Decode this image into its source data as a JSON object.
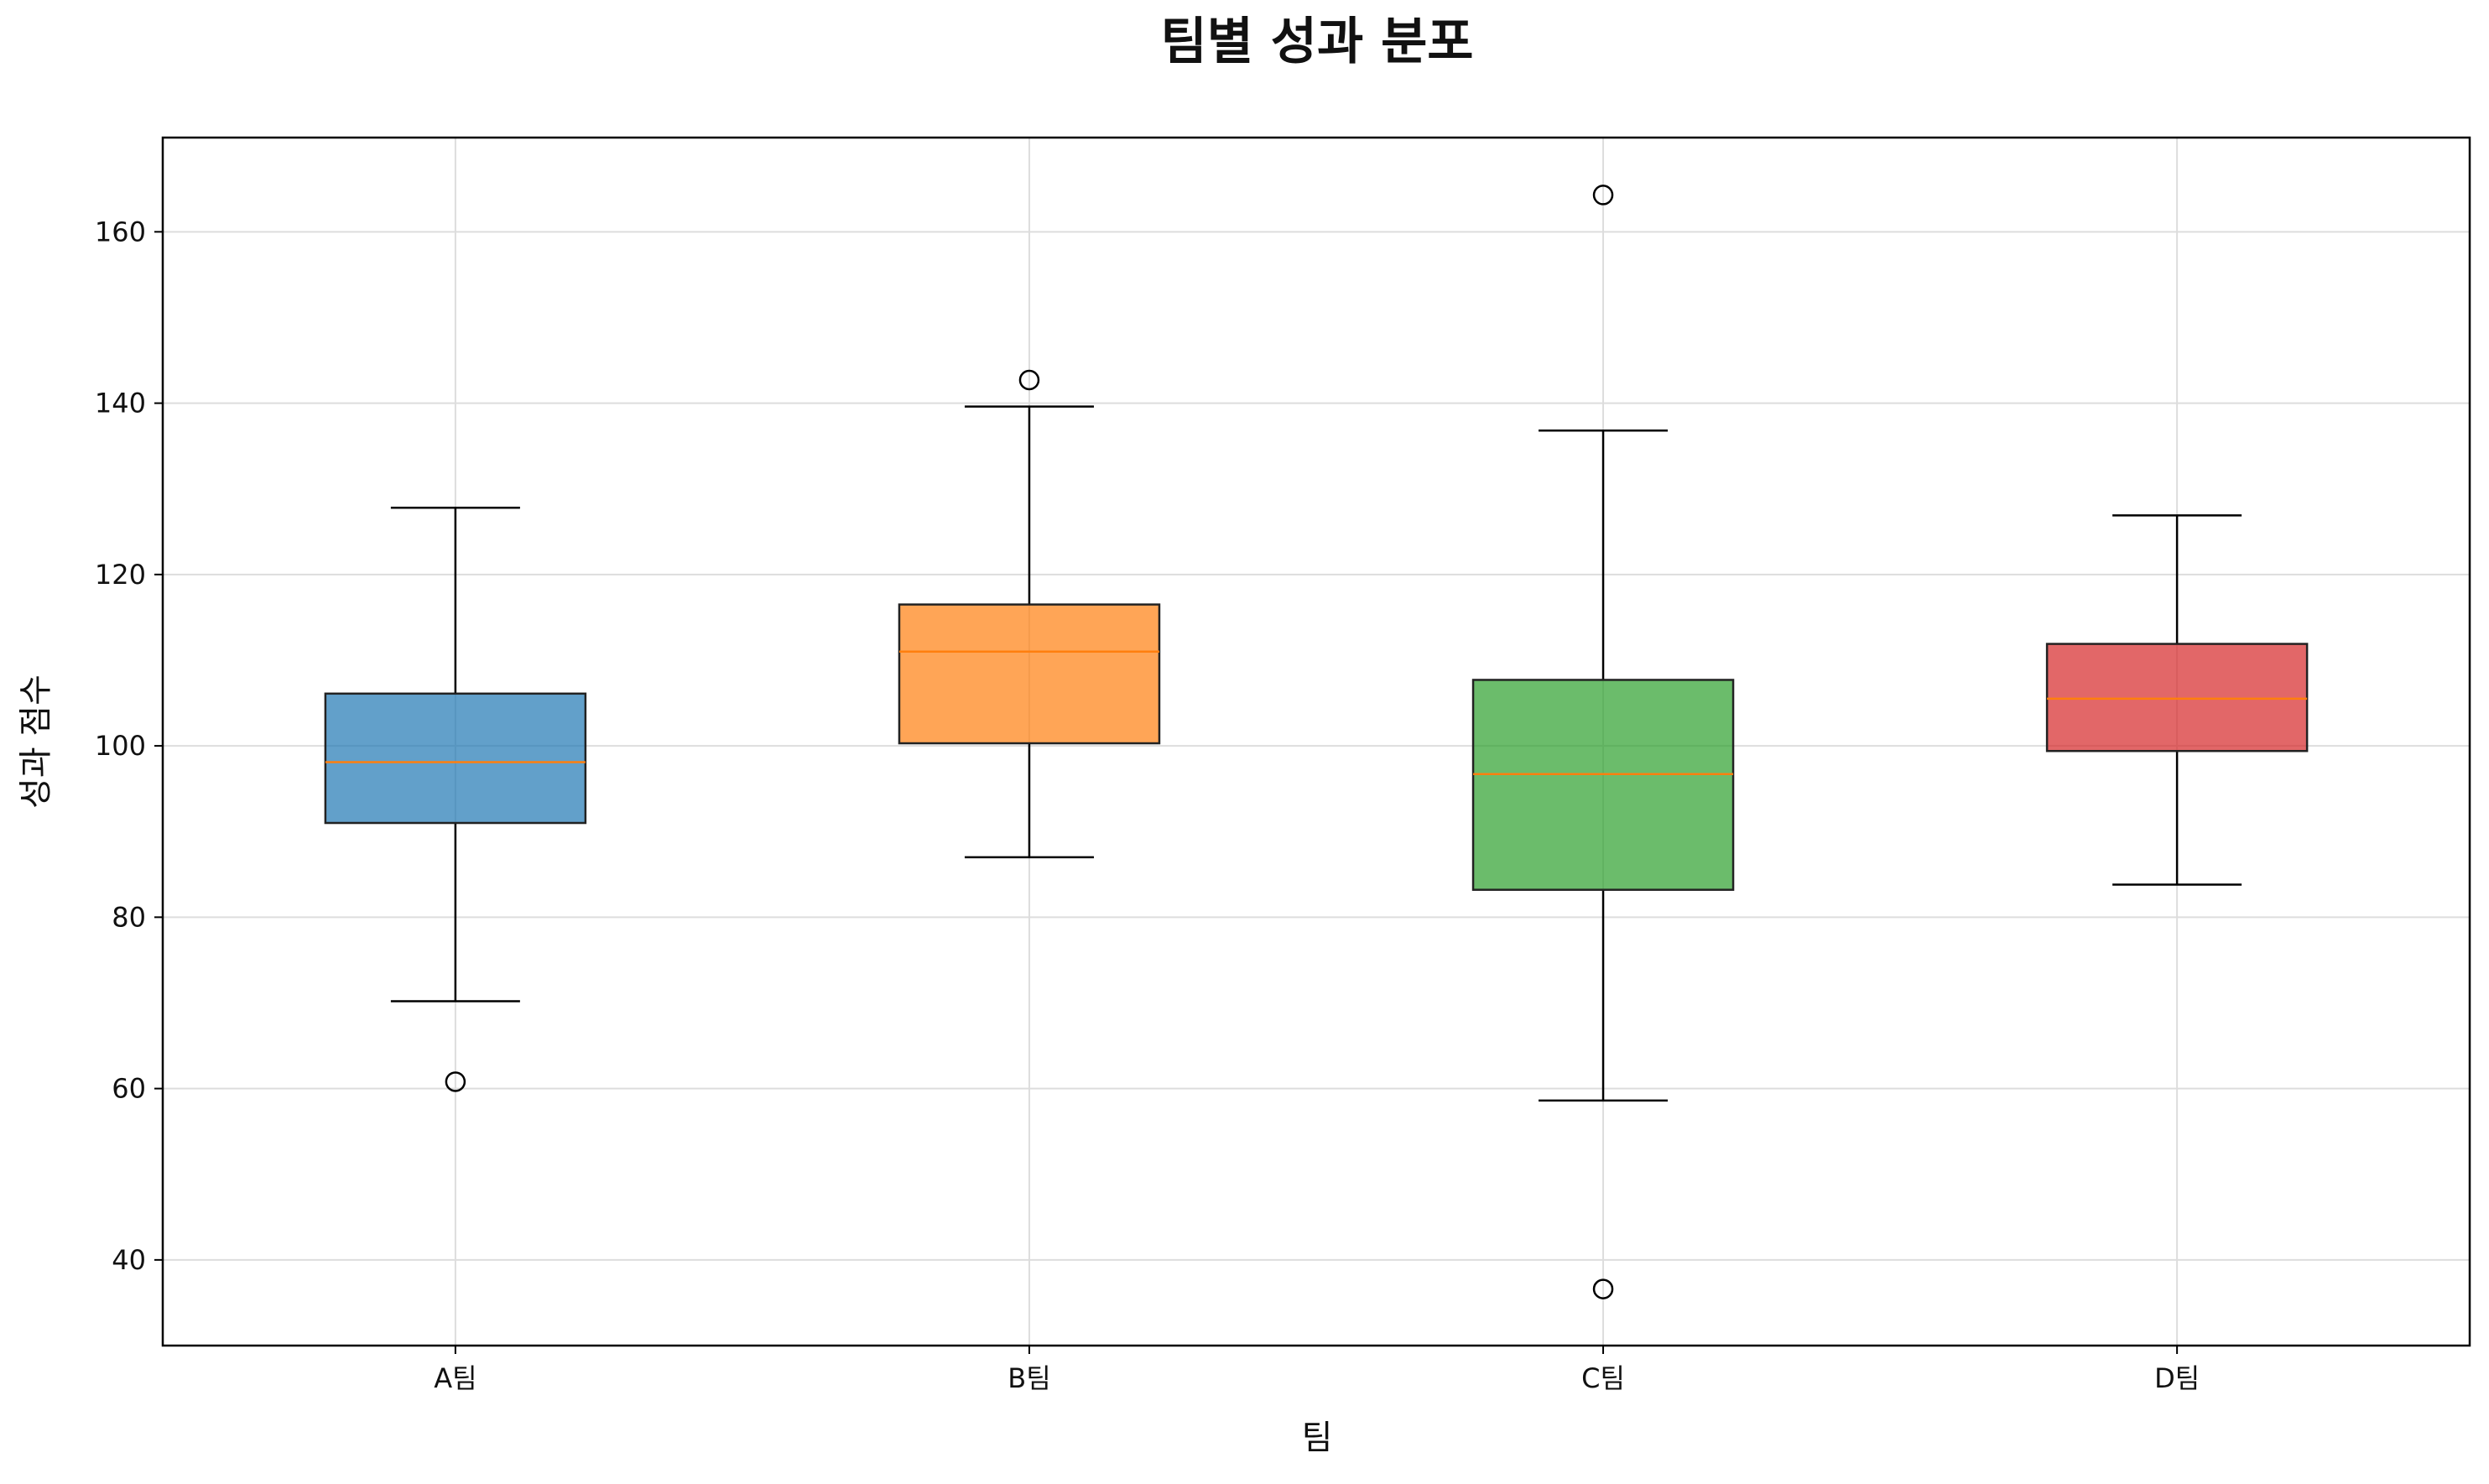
{
  "chart_data": {
    "type": "box",
    "title": "팀별 성과 분포",
    "xlabel": "팀",
    "ylabel": "성과 점수",
    "ylim": [
      30,
      171
    ],
    "yticks": [
      "40",
      "60",
      "80",
      "100",
      "120",
      "140",
      "160"
    ],
    "grid": true,
    "categories": [
      "A팀",
      "B팀",
      "C팀",
      "D팀"
    ],
    "boxes": [
      {
        "category": "A팀",
        "whisker_low": 70.2,
        "q1": 91.0,
        "median": 98.1,
        "q3": 106.1,
        "whisker_high": 127.8,
        "outliers": [
          60.8
        ],
        "color": "#1f77b4"
      },
      {
        "category": "B팀",
        "whisker_low": 87.0,
        "q1": 100.3,
        "median": 111.0,
        "q3": 116.5,
        "whisker_high": 139.6,
        "outliers": [
          142.7
        ],
        "color": "#ff7f0e"
      },
      {
        "category": "C팀",
        "whisker_low": 58.6,
        "q1": 83.2,
        "median": 96.7,
        "q3": 107.7,
        "whisker_high": 136.8,
        "outliers": [
          164.3,
          36.6
        ],
        "color": "#2ca02c"
      },
      {
        "category": "D팀",
        "whisker_low": 83.8,
        "q1": 99.4,
        "median": 105.5,
        "q3": 111.9,
        "whisker_high": 126.9,
        "outliers": [],
        "color": "#d62728"
      }
    ],
    "median_color": "#ff7f0e"
  }
}
